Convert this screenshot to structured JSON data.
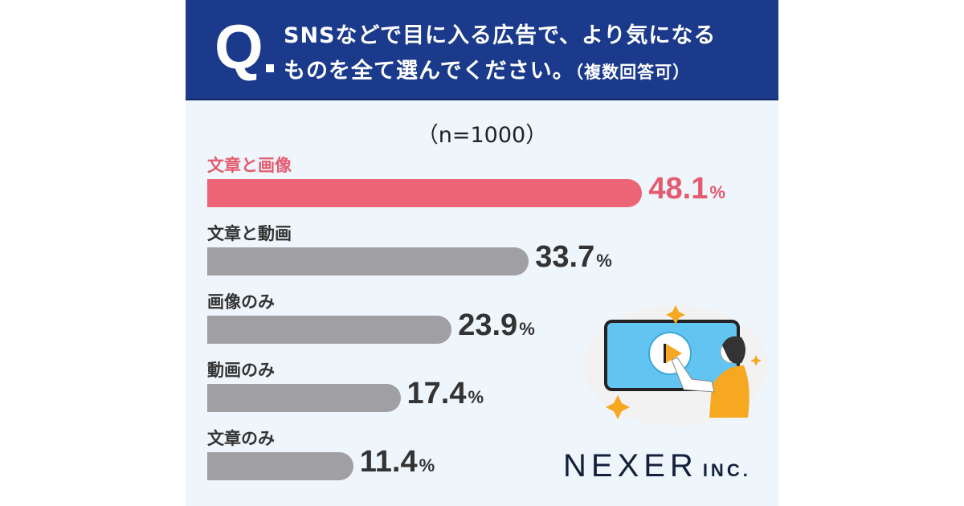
{
  "header": {
    "q_mark": "Q",
    "line1": "SNSなどで目に入る広告で、より気になる",
    "line2": "ものを全て選んでください。",
    "line2_note": "（複数回答可）"
  },
  "chart_data": {
    "type": "bar",
    "orientation": "horizontal",
    "title": "SNSなどで目に入る広告で、より気になるものを全て選んでください。（複数回答可）",
    "sample": "（n=1000）",
    "categories": [
      "文章と画像",
      "文章と動画",
      "画像のみ",
      "動画のみ",
      "文章のみ"
    ],
    "values": [
      48.1,
      33.7,
      23.9,
      17.4,
      11.4
    ],
    "value_labels": [
      "48.1",
      "33.7",
      "23.9",
      "17.4",
      "11.4"
    ],
    "unit": "%",
    "highlight_index": 0,
    "colors": {
      "highlight": "#ec6577",
      "default": "#a0a0a4"
    },
    "xlim": [
      0,
      50
    ]
  },
  "logo": {
    "name": "NEXER",
    "suffix": "INC."
  }
}
